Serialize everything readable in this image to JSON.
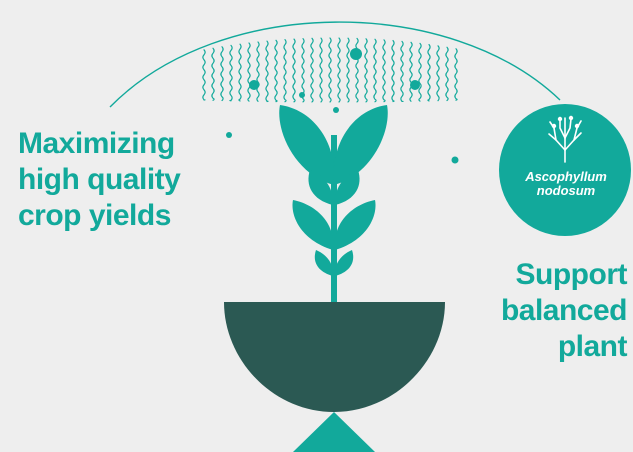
{
  "colors": {
    "background": "#eeeeee",
    "accent": "#12a99b",
    "pot": "#2b5953",
    "badge_text": "#ffffff"
  },
  "left_headline": {
    "lines": [
      "Maximizing",
      "high quality",
      "crop yields"
    ]
  },
  "right_headline": {
    "lines": [
      "Support",
      "balanced",
      "plant"
    ]
  },
  "badge": {
    "icon": "seaweed-icon",
    "lines": [
      "Ascophyllum",
      "nodosum"
    ]
  }
}
